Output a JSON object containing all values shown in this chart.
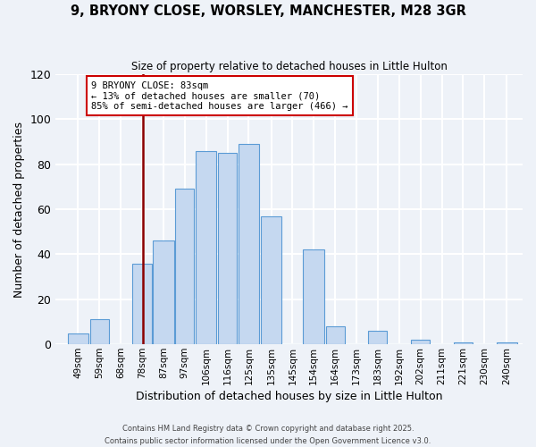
{
  "title_line1": "9, BRYONY CLOSE, WORSLEY, MANCHESTER, M28 3GR",
  "title_line2": "Size of property relative to detached houses in Little Hulton",
  "xlabel": "Distribution of detached houses by size in Little Hulton",
  "ylabel": "Number of detached properties",
  "bar_labels": [
    "49sqm",
    "59sqm",
    "68sqm",
    "78sqm",
    "87sqm",
    "97sqm",
    "106sqm",
    "116sqm",
    "125sqm",
    "135sqm",
    "145sqm",
    "154sqm",
    "164sqm",
    "173sqm",
    "183sqm",
    "192sqm",
    "202sqm",
    "211sqm",
    "221sqm",
    "230sqm",
    "240sqm"
  ],
  "bar_values": [
    5,
    11,
    0,
    36,
    46,
    69,
    86,
    85,
    89,
    57,
    0,
    42,
    8,
    0,
    6,
    0,
    2,
    0,
    1,
    0,
    1
  ],
  "bar_color": "#c5d8f0",
  "bar_edge_color": "#5b9bd5",
  "vline_x": 83,
  "vline_color": "#8b0000",
  "annotation_title": "9 BRYONY CLOSE: 83sqm",
  "annotation_line1": "← 13% of detached houses are smaller (70)",
  "annotation_line2": "85% of semi-detached houses are larger (466) →",
  "annotation_box_color": "#ffffff",
  "annotation_box_edge": "#cc0000",
  "ylim": [
    0,
    120
  ],
  "yticks": [
    0,
    20,
    40,
    60,
    80,
    100,
    120
  ],
  "footer_line1": "Contains HM Land Registry data © Crown copyright and database right 2025.",
  "footer_line2": "Contains public sector information licensed under the Open Government Licence v3.0.",
  "bg_color": "#eef2f8",
  "plot_bg_color": "#eef2f8",
  "grid_color": "#ffffff",
  "last_edge": 250
}
